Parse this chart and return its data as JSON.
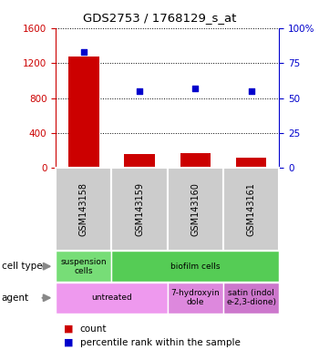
{
  "title": "GDS2753 / 1768129_s_at",
  "samples": [
    "GSM143158",
    "GSM143159",
    "GSM143160",
    "GSM143161"
  ],
  "counts": [
    1270,
    155,
    175,
    120
  ],
  "percentiles": [
    83,
    55,
    57,
    55
  ],
  "ylim_left": [
    0,
    1600
  ],
  "ylim_right": [
    0,
    100
  ],
  "yticks_left": [
    0,
    400,
    800,
    1200,
    1600
  ],
  "yticks_right": [
    0,
    25,
    50,
    75,
    100
  ],
  "bar_color": "#cc0000",
  "dot_color": "#0000cc",
  "cell_type_cells": [
    {
      "text": "suspension\ncells",
      "color": "#77dd77",
      "span": 1
    },
    {
      "text": "biofilm cells",
      "color": "#55cc55",
      "span": 3
    }
  ],
  "agent_cells": [
    {
      "text": "untreated",
      "color": "#ee99ee",
      "span": 2
    },
    {
      "text": "7-hydroxyin\ndole",
      "color": "#dd88dd",
      "span": 1
    },
    {
      "text": "satin (indol\ne-2,3-dione)",
      "color": "#cc77cc",
      "span": 1
    }
  ],
  "legend_count_color": "#cc0000",
  "legend_pct_color": "#0000cc",
  "left_axis_color": "#cc0000",
  "right_axis_color": "#0000cc",
  "background_color": "#ffffff",
  "sample_box_color": "#cccccc",
  "cell_type_label": "cell type",
  "agent_label": "agent"
}
